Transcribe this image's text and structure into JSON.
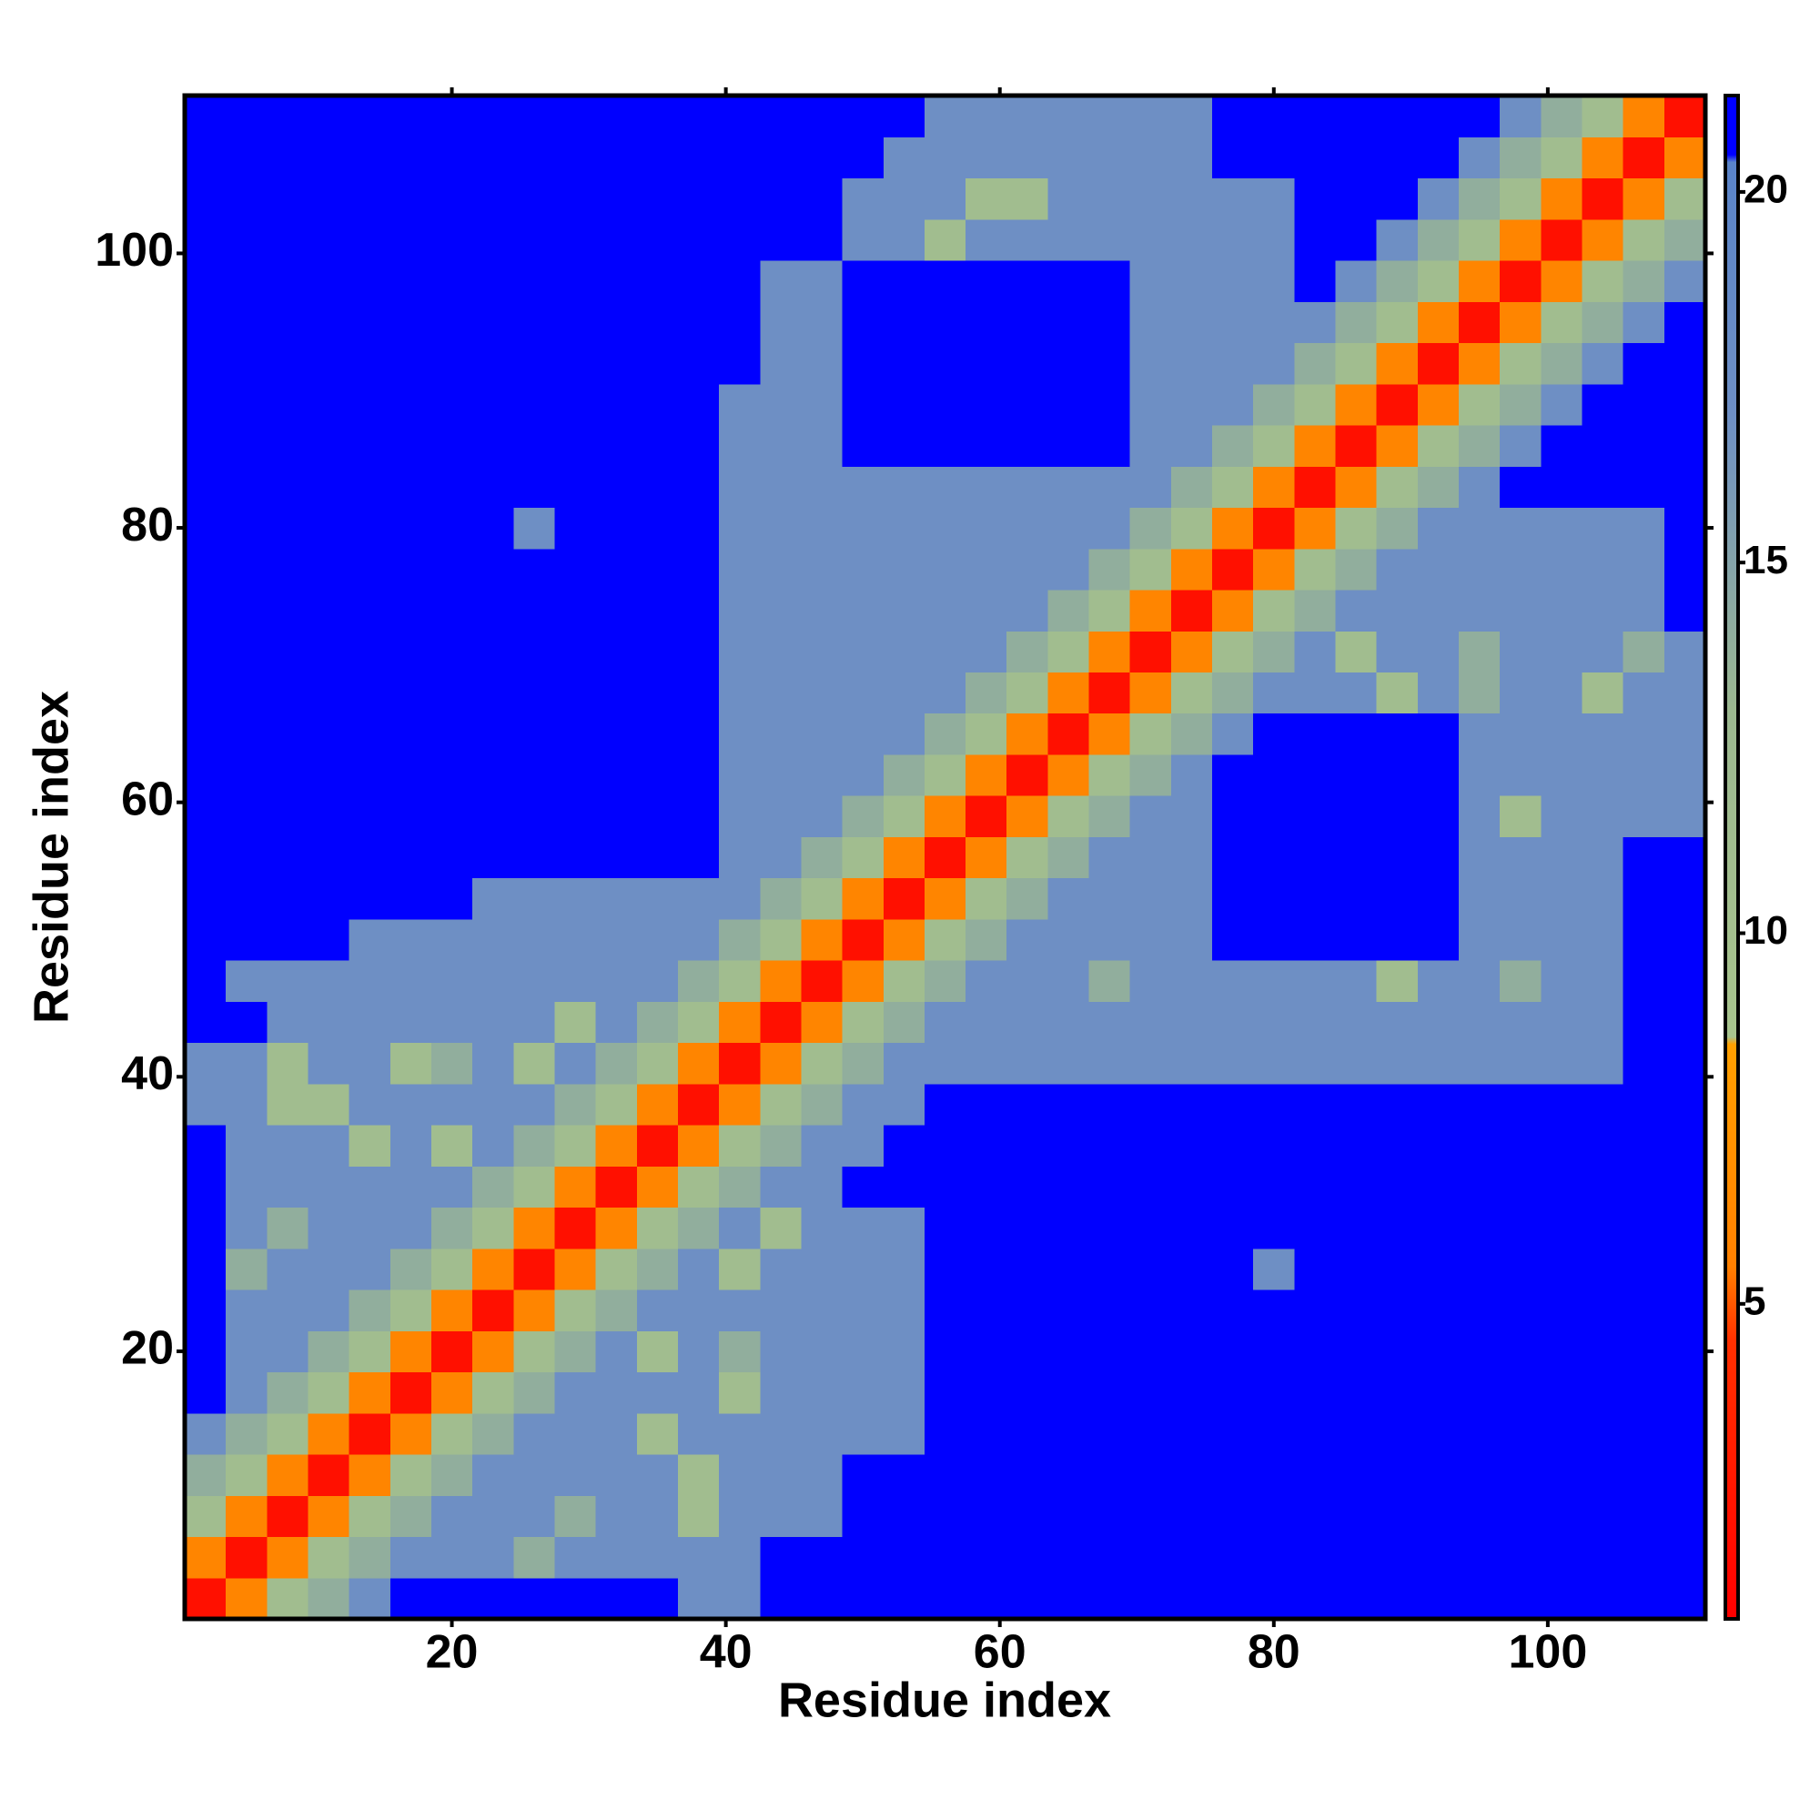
{
  "chart_data": {
    "type": "heatmap",
    "xlabel": "Residue index",
    "ylabel": "Residue index",
    "x": [
      2,
      5,
      8,
      11,
      14,
      17,
      20,
      23,
      26,
      29,
      32,
      35,
      38,
      41,
      44,
      47,
      50,
      53,
      56,
      59,
      62,
      65,
      68,
      71,
      74,
      77,
      80,
      83,
      86,
      89,
      92,
      95,
      98,
      101,
      104,
      107,
      110
    ],
    "y": [
      2,
      5,
      8,
      11,
      14,
      17,
      20,
      23,
      26,
      29,
      32,
      35,
      38,
      41,
      44,
      47,
      50,
      53,
      56,
      59,
      62,
      65,
      68,
      71,
      74,
      77,
      80,
      83,
      86,
      89,
      92,
      95,
      98,
      101,
      104,
      107,
      110
    ],
    "xlim": [
      0.5,
      111.5
    ],
    "ylim": [
      0.5,
      111.5
    ],
    "xticks": [
      20,
      40,
      60,
      80,
      100
    ],
    "yticks": [
      20,
      40,
      60,
      80,
      100
    ],
    "zlim": [
      0.75,
      21.3
    ],
    "zticks": [
      5,
      10,
      15,
      20
    ],
    "colorscale": [
      [
        0.75,
        "#ff0000"
      ],
      [
        4.5,
        "#ff3000"
      ],
      [
        5.5,
        "#ff8000"
      ],
      [
        8.5,
        "#ffa000"
      ],
      [
        8.6,
        "#a8c48e"
      ],
      [
        13,
        "#9cb890"
      ],
      [
        17,
        "#6e8fc4"
      ],
      [
        20.4,
        "#5a84c8"
      ],
      [
        20.5,
        "#0000ff"
      ],
      [
        21.3,
        "#0000ff"
      ]
    ],
    "z": [
      [
        2,
        6,
        11,
        14,
        17,
        21,
        21,
        21,
        21,
        21,
        21,
        21,
        17,
        17,
        21,
        21,
        21,
        21,
        21,
        21,
        21,
        21,
        21,
        21,
        21,
        21,
        21,
        21,
        21,
        21,
        21,
        21,
        21,
        21,
        21,
        21,
        21
      ],
      [
        6,
        2,
        6,
        11,
        14,
        17,
        17,
        17,
        14,
        17,
        17,
        17,
        17,
        17,
        21,
        21,
        21,
        21,
        21,
        21,
        21,
        21,
        21,
        21,
        21,
        21,
        21,
        21,
        21,
        21,
        21,
        21,
        21,
        21,
        21,
        21,
        21
      ],
      [
        11,
        6,
        2,
        6,
        11,
        14,
        17,
        17,
        17,
        14,
        17,
        17,
        11,
        17,
        17,
        17,
        21,
        21,
        21,
        21,
        21,
        21,
        21,
        21,
        21,
        21,
        21,
        21,
        21,
        21,
        21,
        21,
        21,
        21,
        21,
        21,
        21
      ],
      [
        14,
        11,
        6,
        2,
        6,
        11,
        14,
        17,
        17,
        17,
        17,
        17,
        11,
        17,
        17,
        17,
        21,
        21,
        21,
        21,
        21,
        21,
        21,
        21,
        21,
        21,
        21,
        21,
        21,
        21,
        21,
        21,
        21,
        21,
        21,
        21,
        21
      ],
      [
        17,
        14,
        11,
        6,
        2,
        6,
        11,
        14,
        17,
        17,
        17,
        11,
        17,
        17,
        17,
        17,
        17,
        17,
        21,
        21,
        21,
        21,
        21,
        21,
        21,
        21,
        21,
        21,
        21,
        21,
        21,
        21,
        21,
        21,
        21,
        21,
        21
      ],
      [
        21,
        17,
        14,
        11,
        6,
        2,
        6,
        11,
        14,
        17,
        17,
        17,
        17,
        11,
        17,
        17,
        17,
        17,
        21,
        21,
        21,
        21,
        21,
        21,
        21,
        21,
        21,
        21,
        21,
        21,
        21,
        21,
        21,
        21,
        21,
        21,
        21
      ],
      [
        21,
        17,
        17,
        14,
        11,
        6,
        2,
        6,
        11,
        14,
        17,
        11,
        17,
        14,
        17,
        17,
        17,
        17,
        21,
        21,
        21,
        21,
        21,
        21,
        21,
        21,
        21,
        21,
        21,
        21,
        21,
        21,
        21,
        21,
        21,
        21,
        21
      ],
      [
        21,
        17,
        17,
        17,
        14,
        11,
        6,
        2,
        6,
        11,
        14,
        17,
        17,
        17,
        17,
        17,
        17,
        17,
        21,
        21,
        21,
        21,
        21,
        21,
        21,
        21,
        21,
        21,
        21,
        21,
        21,
        21,
        21,
        21,
        21,
        21,
        21
      ],
      [
        21,
        14,
        17,
        17,
        17,
        14,
        11,
        6,
        2,
        6,
        11,
        14,
        17,
        11,
        17,
        17,
        17,
        17,
        21,
        21,
        21,
        21,
        21,
        21,
        21,
        21,
        17,
        21,
        21,
        21,
        21,
        21,
        21,
        21,
        21,
        21,
        21
      ],
      [
        21,
        17,
        14,
        17,
        17,
        17,
        14,
        11,
        6,
        2,
        6,
        11,
        14,
        17,
        11,
        17,
        17,
        17,
        21,
        21,
        21,
        21,
        21,
        21,
        21,
        21,
        21,
        21,
        21,
        21,
        21,
        21,
        21,
        21,
        21,
        21,
        21
      ],
      [
        21,
        17,
        17,
        17,
        17,
        17,
        17,
        14,
        11,
        6,
        2,
        6,
        11,
        14,
        17,
        17,
        21,
        21,
        21,
        21,
        21,
        21,
        21,
        21,
        21,
        21,
        21,
        21,
        21,
        21,
        21,
        21,
        21,
        21,
        21,
        21,
        21
      ],
      [
        21,
        17,
        17,
        17,
        11,
        17,
        11,
        17,
        14,
        11,
        6,
        2,
        6,
        11,
        14,
        17,
        17,
        21,
        21,
        21,
        21,
        21,
        21,
        21,
        21,
        21,
        21,
        21,
        21,
        21,
        21,
        21,
        21,
        21,
        21,
        21,
        21
      ],
      [
        17,
        17,
        11,
        11,
        17,
        17,
        17,
        17,
        17,
        14,
        11,
        6,
        2,
        6,
        11,
        14,
        17,
        17,
        21,
        21,
        21,
        21,
        21,
        21,
        21,
        21,
        21,
        21,
        21,
        21,
        21,
        21,
        21,
        21,
        21,
        21,
        21
      ],
      [
        17,
        17,
        11,
        17,
        17,
        11,
        14,
        17,
        11,
        17,
        14,
        11,
        6,
        2,
        6,
        11,
        14,
        17,
        17,
        17,
        17,
        17,
        17,
        17,
        17,
        17,
        17,
        17,
        17,
        17,
        17,
        17,
        17,
        17,
        17,
        21,
        21
      ],
      [
        21,
        21,
        17,
        17,
        17,
        17,
        17,
        17,
        17,
        11,
        17,
        14,
        11,
        6,
        2,
        6,
        11,
        14,
        17,
        17,
        17,
        17,
        17,
        17,
        17,
        17,
        17,
        17,
        17,
        17,
        17,
        17,
        17,
        17,
        17,
        21,
        21
      ],
      [
        21,
        17,
        17,
        17,
        17,
        17,
        17,
        17,
        17,
        17,
        17,
        17,
        14,
        11,
        6,
        2,
        6,
        11,
        14,
        17,
        17,
        17,
        14,
        17,
        17,
        17,
        17,
        17,
        17,
        11,
        17,
        17,
        14,
        17,
        17,
        21,
        21
      ],
      [
        21,
        21,
        21,
        21,
        17,
        17,
        17,
        17,
        17,
        17,
        17,
        17,
        17,
        14,
        11,
        6,
        2,
        6,
        11,
        14,
        17,
        17,
        17,
        17,
        17,
        21,
        21,
        21,
        21,
        21,
        21,
        17,
        17,
        17,
        17,
        21,
        21
      ],
      [
        21,
        21,
        21,
        21,
        21,
        21,
        21,
        17,
        17,
        17,
        17,
        17,
        17,
        17,
        14,
        11,
        6,
        2,
        6,
        11,
        14,
        17,
        17,
        17,
        17,
        21,
        21,
        21,
        21,
        21,
        21,
        17,
        17,
        17,
        17,
        21,
        21
      ],
      [
        21,
        21,
        21,
        21,
        21,
        21,
        21,
        21,
        21,
        21,
        21,
        21,
        21,
        17,
        17,
        14,
        11,
        6,
        2,
        6,
        11,
        14,
        17,
        17,
        17,
        21,
        21,
        21,
        21,
        21,
        21,
        17,
        17,
        17,
        17,
        21,
        21
      ],
      [
        21,
        21,
        21,
        21,
        21,
        21,
        21,
        21,
        21,
        21,
        21,
        21,
        21,
        17,
        17,
        17,
        14,
        11,
        6,
        2,
        6,
        11,
        14,
        17,
        17,
        21,
        21,
        21,
        21,
        21,
        21,
        17,
        11,
        17,
        17,
        17,
        17
      ],
      [
        21,
        21,
        21,
        21,
        21,
        21,
        21,
        21,
        21,
        21,
        21,
        21,
        21,
        17,
        17,
        17,
        17,
        14,
        11,
        6,
        2,
        6,
        11,
        14,
        17,
        21,
        21,
        21,
        21,
        21,
        21,
        17,
        17,
        17,
        17,
        17,
        17
      ],
      [
        21,
        21,
        21,
        21,
        21,
        21,
        21,
        21,
        21,
        21,
        21,
        21,
        21,
        17,
        17,
        17,
        17,
        17,
        14,
        11,
        6,
        2,
        6,
        11,
        14,
        17,
        21,
        21,
        21,
        21,
        21,
        17,
        17,
        17,
        17,
        17,
        17
      ],
      [
        21,
        21,
        21,
        21,
        21,
        21,
        21,
        21,
        21,
        21,
        21,
        21,
        21,
        17,
        17,
        17,
        17,
        17,
        17,
        14,
        11,
        6,
        2,
        6,
        11,
        14,
        17,
        17,
        17,
        11,
        17,
        14,
        17,
        17,
        11,
        17,
        17
      ],
      [
        21,
        21,
        21,
        21,
        21,
        21,
        21,
        21,
        21,
        21,
        21,
        21,
        21,
        17,
        17,
        17,
        17,
        17,
        17,
        17,
        14,
        11,
        6,
        2,
        6,
        11,
        14,
        17,
        11,
        17,
        17,
        14,
        17,
        17,
        17,
        14,
        17
      ],
      [
        21,
        21,
        21,
        21,
        21,
        21,
        21,
        21,
        21,
        21,
        21,
        21,
        21,
        17,
        17,
        17,
        17,
        17,
        17,
        17,
        17,
        14,
        11,
        6,
        2,
        6,
        11,
        14,
        17,
        17,
        17,
        17,
        17,
        17,
        17,
        17,
        21
      ],
      [
        21,
        21,
        21,
        21,
        21,
        21,
        21,
        21,
        21,
        21,
        21,
        21,
        21,
        17,
        17,
        17,
        17,
        17,
        17,
        17,
        17,
        17,
        14,
        11,
        6,
        2,
        6,
        11,
        14,
        17,
        17,
        17,
        17,
        17,
        17,
        17,
        21
      ],
      [
        21,
        21,
        21,
        21,
        21,
        21,
        21,
        21,
        17,
        21,
        21,
        21,
        21,
        17,
        17,
        17,
        17,
        17,
        17,
        17,
        17,
        17,
        17,
        14,
        11,
        6,
        2,
        6,
        11,
        14,
        17,
        17,
        17,
        17,
        17,
        17,
        21
      ],
      [
        21,
        21,
        21,
        21,
        21,
        21,
        21,
        21,
        21,
        21,
        21,
        21,
        21,
        17,
        17,
        17,
        17,
        17,
        17,
        17,
        17,
        17,
        17,
        17,
        14,
        11,
        6,
        2,
        6,
        11,
        14,
        17,
        21,
        21,
        21,
        21,
        21
      ],
      [
        21,
        21,
        21,
        21,
        21,
        21,
        21,
        21,
        21,
        21,
        21,
        21,
        21,
        17,
        17,
        17,
        21,
        21,
        21,
        21,
        21,
        21,
        21,
        17,
        17,
        14,
        11,
        6,
        2,
        6,
        11,
        14,
        17,
        21,
        21,
        21,
        21
      ],
      [
        21,
        21,
        21,
        21,
        21,
        21,
        21,
        21,
        21,
        21,
        21,
        21,
        21,
        17,
        17,
        17,
        21,
        21,
        21,
        21,
        21,
        21,
        21,
        17,
        17,
        17,
        14,
        11,
        6,
        2,
        6,
        11,
        14,
        17,
        21,
        21,
        21
      ],
      [
        21,
        21,
        21,
        21,
        21,
        21,
        21,
        21,
        21,
        21,
        21,
        21,
        21,
        21,
        17,
        17,
        21,
        21,
        21,
        21,
        21,
        21,
        21,
        17,
        17,
        17,
        17,
        14,
        11,
        6,
        2,
        6,
        11,
        14,
        17,
        21,
        21
      ],
      [
        21,
        21,
        21,
        21,
        21,
        21,
        21,
        21,
        21,
        21,
        21,
        21,
        21,
        21,
        17,
        17,
        21,
        21,
        21,
        21,
        21,
        21,
        21,
        17,
        17,
        17,
        17,
        17,
        14,
        11,
        6,
        2,
        6,
        11,
        14,
        17,
        21
      ],
      [
        21,
        21,
        21,
        21,
        21,
        21,
        21,
        21,
        21,
        21,
        21,
        21,
        21,
        21,
        17,
        17,
        21,
        21,
        21,
        21,
        21,
        21,
        21,
        17,
        17,
        17,
        17,
        21,
        17,
        14,
        11,
        6,
        2,
        6,
        11,
        14,
        17
      ],
      [
        21,
        21,
        21,
        21,
        21,
        21,
        21,
        21,
        21,
        21,
        21,
        21,
        21,
        21,
        21,
        21,
        17,
        17,
        11,
        17,
        17,
        17,
        17,
        17,
        17,
        17,
        17,
        21,
        21,
        17,
        14,
        11,
        6,
        2,
        6,
        11,
        14
      ],
      [
        21,
        21,
        21,
        21,
        21,
        21,
        21,
        21,
        21,
        21,
        21,
        21,
        21,
        21,
        21,
        21,
        17,
        17,
        17,
        11,
        11,
        17,
        17,
        17,
        17,
        17,
        17,
        21,
        21,
        21,
        17,
        14,
        11,
        6,
        2,
        6,
        11
      ],
      [
        21,
        21,
        21,
        21,
        21,
        21,
        21,
        21,
        21,
        21,
        21,
        21,
        21,
        21,
        21,
        21,
        21,
        17,
        17,
        17,
        17,
        17,
        17,
        17,
        17,
        21,
        21,
        21,
        21,
        21,
        21,
        17,
        14,
        11,
        6,
        2,
        6
      ],
      [
        21,
        21,
        21,
        21,
        21,
        21,
        21,
        21,
        21,
        21,
        21,
        21,
        21,
        21,
        21,
        21,
        21,
        21,
        17,
        17,
        17,
        17,
        17,
        17,
        17,
        21,
        21,
        21,
        21,
        21,
        21,
        21,
        17,
        14,
        11,
        6,
        2
      ]
    ]
  }
}
